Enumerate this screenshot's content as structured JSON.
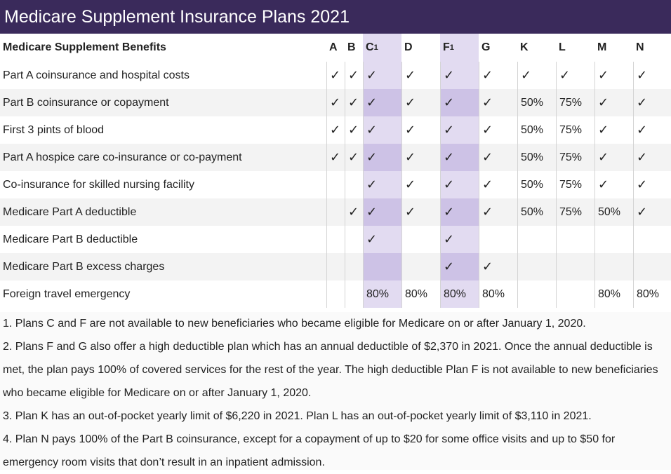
{
  "header": {
    "title": "Medicare Supplement Insurance Plans 2021"
  },
  "table": {
    "header": "Medicare Supplement Benefits",
    "columns": [
      {
        "name": "A"
      },
      {
        "name": "B"
      },
      {
        "name": "C",
        "sup": "1"
      },
      {
        "name": "D"
      },
      {
        "name": "F",
        "sup": "1"
      },
      {
        "name": "G"
      },
      {
        "name": "K"
      },
      {
        "name": "L"
      },
      {
        "name": "M"
      },
      {
        "name": "N"
      }
    ],
    "rows": [
      {
        "benefit": "Part A coinsurance and hospital costs",
        "cells": [
          "✓",
          "✓",
          "✓",
          "✓",
          "✓",
          "✓",
          "✓",
          "✓",
          "✓",
          "✓"
        ]
      },
      {
        "benefit": "Part B coinsurance or copayment",
        "cells": [
          "✓",
          "✓",
          "✓",
          "✓",
          "✓",
          "✓",
          "50%",
          "75%",
          "✓",
          "✓"
        ]
      },
      {
        "benefit": "First 3 pints of blood",
        "cells": [
          "✓",
          "✓",
          "✓",
          "✓",
          "✓",
          "✓",
          "50%",
          "75%",
          "✓",
          "✓"
        ]
      },
      {
        "benefit": "Part A hospice care co-insurance or co-payment",
        "cells": [
          "✓",
          "✓",
          "✓",
          "✓",
          "✓",
          "✓",
          "50%",
          "75%",
          "✓",
          "✓"
        ]
      },
      {
        "benefit": "Co-insurance for skilled nursing facility",
        "cells": [
          null,
          null,
          "✓",
          "✓",
          "✓",
          "✓",
          "50%",
          "75%",
          "✓",
          "✓"
        ]
      },
      {
        "benefit": "Medicare Part A deductible",
        "cells": [
          null,
          "✓",
          "✓",
          "✓",
          "✓",
          "✓",
          "50%",
          "75%",
          "50%",
          "✓"
        ]
      },
      {
        "benefit": "Medicare Part B deductible",
        "cells": [
          null,
          null,
          "✓",
          null,
          "✓",
          null,
          null,
          null,
          null,
          null
        ]
      },
      {
        "benefit": "Medicare Part B excess charges",
        "cells": [
          null,
          null,
          null,
          null,
          "✓",
          "✓",
          null,
          null,
          null,
          null
        ]
      },
      {
        "benefit": "Foreign travel emergency",
        "cells": [
          null,
          null,
          "80%",
          "80%",
          "80%",
          "80%",
          null,
          null,
          "80%",
          "80%"
        ]
      }
    ]
  },
  "footnotes": [
    "1. Plans C and F are not available to new beneficiaries who became eligible for Medicare on or after January 1, 2020.",
    "2. Plans F and G also offer a high deductible plan which has an annual deductible of $2,370 in 2021. Once the annual deductible is met, the plan pays 100% of covered services for the rest of the year. The high deductible Plan F is not available to new beneficiaries who became eligible for Medicare on or after January 1, 2020.",
    "3. Plan K has an out-of-pocket yearly limit of $6,220 in 2021. Plan L has an out-of-pocket yearly limit of $3,110 in 2021.",
    "4. Plan N pays 100% of the Part B coinsurance, except for a copayment of up to $20 for some office visits and up to $50 for emergency room visits that don’t result in an inpatient admission."
  ]
}
